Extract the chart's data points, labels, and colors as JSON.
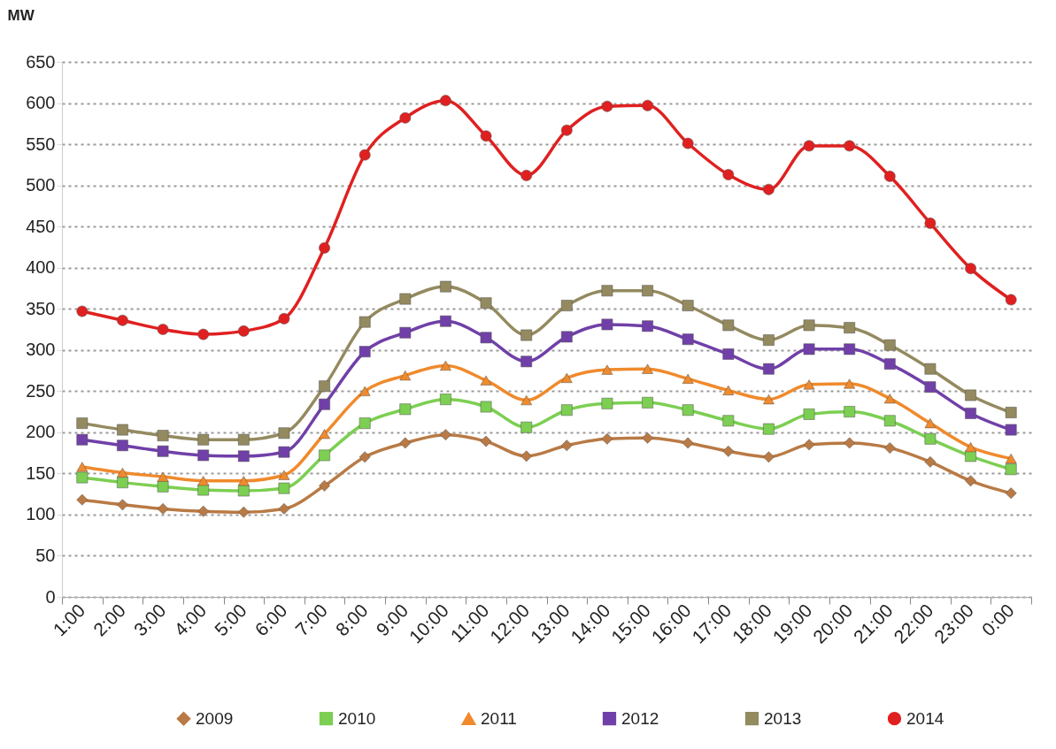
{
  "chart_data": {
    "type": "line",
    "ylabel": "MW",
    "categories": [
      "1:00",
      "2:00",
      "3:00",
      "4:00",
      "5:00",
      "6:00",
      "7:00",
      "8:00",
      "9:00",
      "10:00",
      "11:00",
      "12:00",
      "13:00",
      "14:00",
      "15:00",
      "16:00",
      "17:00",
      "18:00",
      "19:00",
      "20:00",
      "21:00",
      "22:00",
      "23:00",
      "0:00"
    ],
    "series": [
      {
        "name": "2009",
        "color": "#b97a45",
        "marker": "diamond",
        "values": [
          118,
          112,
          107,
          104,
          103,
          107,
          135,
          170,
          187,
          197,
          189,
          171,
          184,
          192,
          193,
          187,
          177,
          170,
          185,
          187,
          181,
          164,
          141,
          126
        ]
      },
      {
        "name": "2010",
        "color": "#7ccf52",
        "marker": "square",
        "values": [
          145,
          139,
          134,
          130,
          129,
          132,
          172,
          211,
          228,
          240,
          231,
          206,
          227,
          235,
          236,
          227,
          214,
          204,
          222,
          225,
          214,
          192,
          171,
          155
        ]
      },
      {
        "name": "2011",
        "color": "#f08a2c",
        "marker": "triangle",
        "values": [
          158,
          151,
          146,
          141,
          141,
          148,
          198,
          250,
          269,
          281,
          263,
          239,
          266,
          276,
          277,
          265,
          251,
          240,
          258,
          259,
          241,
          211,
          182,
          168
        ]
      },
      {
        "name": "2012",
        "color": "#7040a8",
        "marker": "square",
        "values": [
          191,
          184,
          177,
          172,
          171,
          176,
          234,
          298,
          321,
          335,
          315,
          286,
          316,
          331,
          329,
          313,
          295,
          277,
          301,
          301,
          283,
          255,
          223,
          203
        ]
      },
      {
        "name": "2013",
        "color": "#948a60",
        "marker": "square",
        "values": [
          211,
          203,
          196,
          191,
          191,
          199,
          256,
          334,
          362,
          377,
          357,
          318,
          354,
          372,
          372,
          354,
          330,
          312,
          330,
          327,
          306,
          277,
          245,
          224
        ]
      },
      {
        "name": "2014",
        "color": "#e02020",
        "marker": "circle",
        "values": [
          347,
          336,
          325,
          319,
          323,
          338,
          424,
          537,
          582,
          603,
          560,
          512,
          567,
          596,
          597,
          551,
          513,
          495,
          548,
          548,
          511,
          454,
          399,
          361
        ]
      }
    ],
    "ylim": [
      0,
      650
    ],
    "yticks": [
      0,
      50,
      100,
      150,
      200,
      250,
      300,
      350,
      400,
      450,
      500,
      550,
      600,
      650
    ],
    "grid": "y",
    "legend": "bottom",
    "line_style": "solid"
  }
}
